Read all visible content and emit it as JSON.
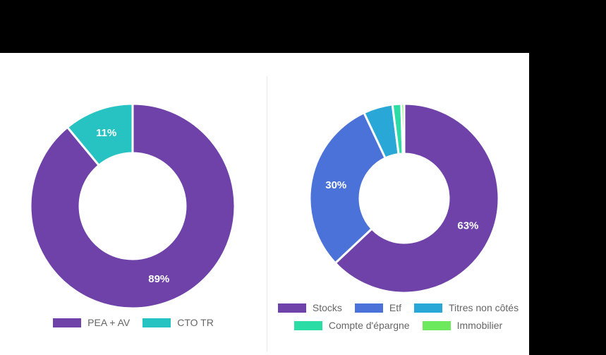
{
  "window": {
    "red_indicator_color": "#e31b1b",
    "panel_background": "#ffffff",
    "surround_background": "#000000",
    "legend_text_color": "#666666"
  },
  "chart_data": [
    {
      "type": "pie",
      "variant": "donut",
      "title": "",
      "labels": [
        "PEA + AV",
        "CTO TR"
      ],
      "values": [
        89,
        11
      ],
      "slice_labels": [
        "89%",
        "11%"
      ],
      "colors": [
        "#6e42a8",
        "#27c3c3"
      ],
      "legend_position": "bottom",
      "legend_rows": "2",
      "start_angle_deg": 0,
      "direction": "clockwise"
    },
    {
      "type": "pie",
      "variant": "donut",
      "title": "",
      "labels": [
        "Stocks",
        "Etf",
        "Titres non côtés",
        "Compte d'épargne",
        "Immobilier"
      ],
      "values": [
        63,
        30,
        5,
        1.5,
        0.5
      ],
      "slice_labels": [
        "63%",
        "30%",
        "",
        "",
        ""
      ],
      "colors": [
        "#6e42a8",
        "#4a72d9",
        "#29a8d8",
        "#2bdca4",
        "#6ce95c"
      ],
      "legend_position": "bottom",
      "legend_rows": "3,2",
      "start_angle_deg": 0,
      "direction": "clockwise"
    }
  ]
}
